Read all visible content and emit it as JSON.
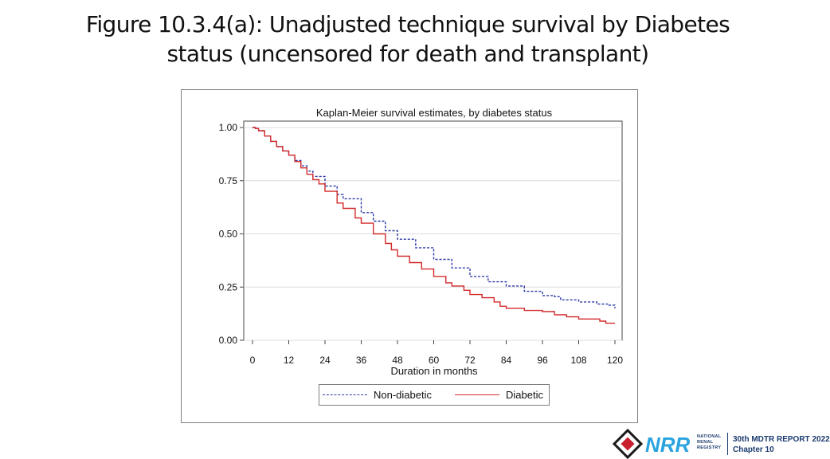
{
  "slide": {
    "title_line1": "Figure 10.3.4(a): Unadjusted technique survival by Diabetes",
    "title_line2": "status (uncensored for death and transplant)"
  },
  "footer": {
    "registry_line1": "NATIONAL",
    "registry_line2": "RENAL",
    "registry_line3": "REGISTRY",
    "report_line1": "30th MDTR REPORT 2022",
    "report_line2": "Chapter 10",
    "logo_text": "NRR"
  },
  "colors": {
    "non_diabetic": "#2b3aa8",
    "diabetic": "#d42a2a",
    "grid": "#dcdcdc",
    "axis": "#444444",
    "brand": "#1b3b6f",
    "logo_red": "#c8202f"
  },
  "chart_data": {
    "type": "line",
    "title": "Kaplan-Meier survival estimates, by diabetes status",
    "xlabel": "Duration in months",
    "ylabel": "",
    "xlim": [
      0,
      120
    ],
    "ylim": [
      0,
      1
    ],
    "x_ticks": [
      "0",
      "12",
      "24",
      "36",
      "48",
      "60",
      "72",
      "84",
      "96",
      "108",
      "120"
    ],
    "y_ticks": [
      "0.00",
      "0.25",
      "0.50",
      "0.75",
      "1.00"
    ],
    "grid": "horizontal",
    "legend_position": "bottom",
    "series": [
      {
        "name": "Non-diabetic",
        "style": "dashed",
        "color": "#2b3aa8",
        "x": [
          0,
          1,
          2,
          4,
          6,
          8,
          10,
          12,
          14,
          16,
          18,
          20,
          24,
          28,
          30,
          36,
          40,
          44,
          48,
          54,
          60,
          66,
          72,
          78,
          84,
          90,
          96,
          100,
          102,
          108,
          114,
          118,
          120
        ],
        "y": [
          1.0,
          0.995,
          0.985,
          0.96,
          0.935,
          0.91,
          0.89,
          0.87,
          0.845,
          0.82,
          0.795,
          0.77,
          0.725,
          0.685,
          0.665,
          0.6,
          0.56,
          0.515,
          0.475,
          0.435,
          0.38,
          0.34,
          0.3,
          0.275,
          0.255,
          0.23,
          0.21,
          0.205,
          0.19,
          0.18,
          0.17,
          0.165,
          0.15
        ]
      },
      {
        "name": "Diabetic",
        "style": "solid",
        "color": "#d42a2a",
        "x": [
          0,
          1,
          2,
          4,
          6,
          8,
          10,
          12,
          14,
          16,
          18,
          20,
          22,
          24,
          28,
          30,
          34,
          36,
          40,
          44,
          46,
          48,
          52,
          56,
          60,
          64,
          66,
          70,
          72,
          76,
          80,
          82,
          84,
          90,
          96,
          100,
          102,
          104,
          106,
          108,
          112,
          115,
          117,
          120
        ],
        "y": [
          1.0,
          0.995,
          0.985,
          0.96,
          0.935,
          0.91,
          0.89,
          0.87,
          0.84,
          0.81,
          0.78,
          0.755,
          0.735,
          0.7,
          0.645,
          0.62,
          0.575,
          0.55,
          0.5,
          0.455,
          0.425,
          0.395,
          0.365,
          0.335,
          0.3,
          0.27,
          0.255,
          0.235,
          0.215,
          0.2,
          0.18,
          0.16,
          0.15,
          0.14,
          0.135,
          0.12,
          0.12,
          0.11,
          0.11,
          0.1,
          0.1,
          0.09,
          0.08,
          0.08
        ]
      }
    ]
  }
}
